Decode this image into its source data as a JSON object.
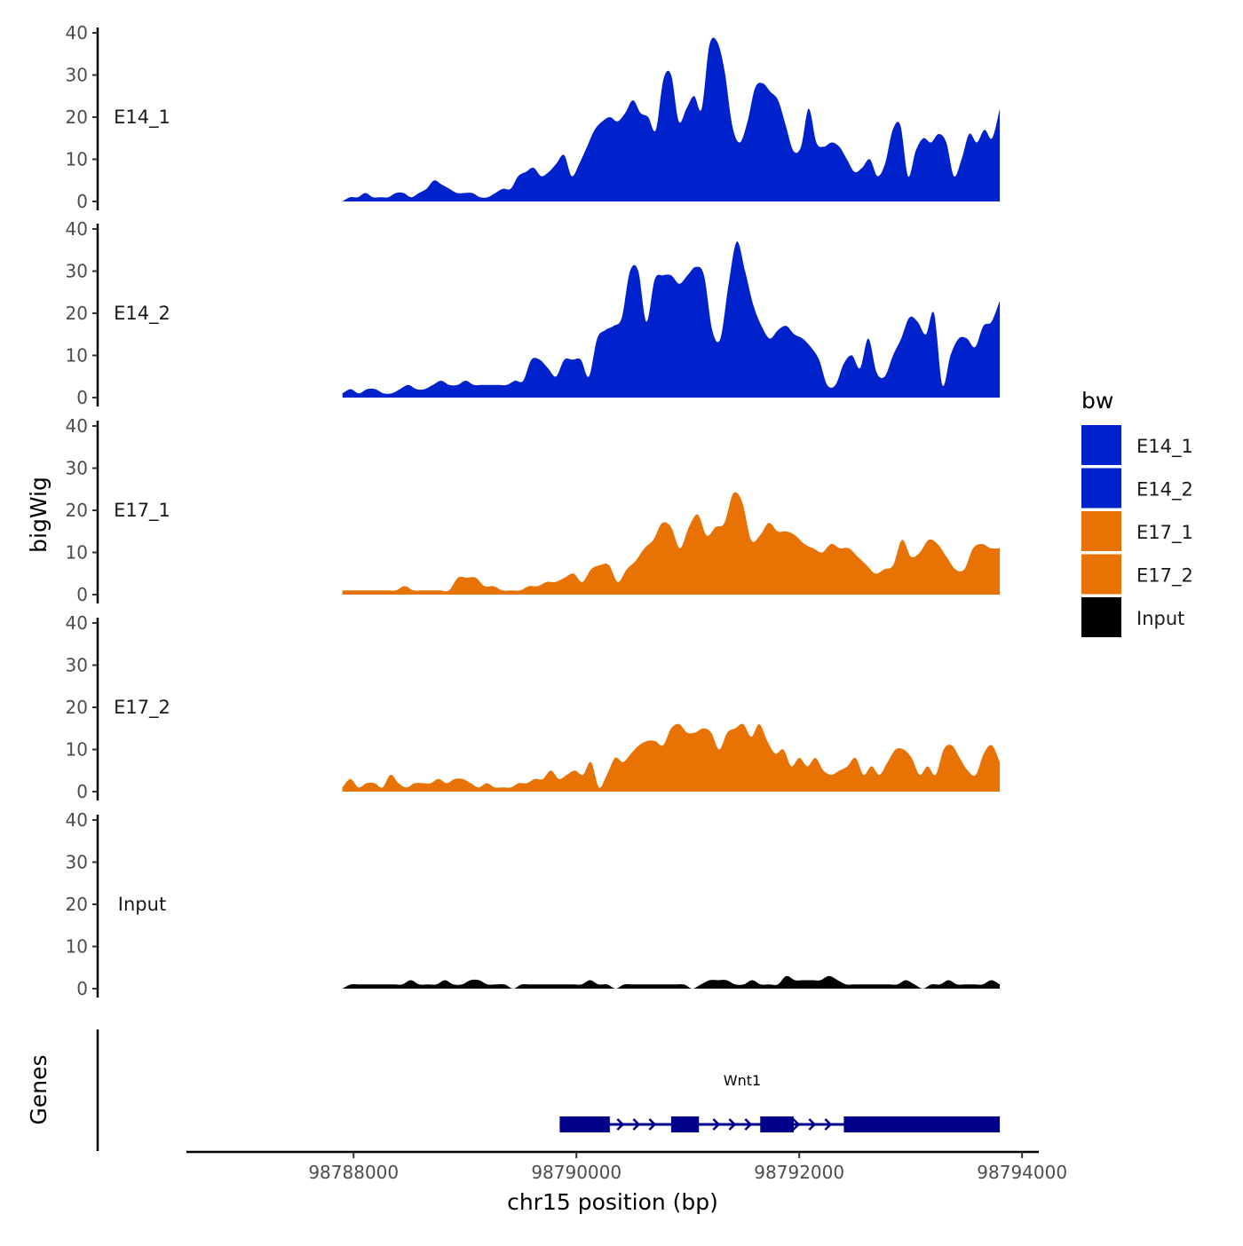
{
  "chart_data": {
    "type": "area",
    "ylabel": "bigWig",
    "xlabel": "chr15 position (bp)",
    "x_ticks": [
      98788000,
      98790000,
      98792000,
      98794000
    ],
    "x_tick_labels": [
      "98788000",
      "98790000",
      "98792000",
      "98794000"
    ],
    "xlim": [
      98786500,
      98794150
    ],
    "data_range": [
      98787900,
      98793800
    ],
    "ylim": [
      0,
      40
    ],
    "y_ticks": [
      0,
      10,
      20,
      30,
      40
    ],
    "y_tick_labels": [
      "0",
      "10",
      "20",
      "30",
      "40"
    ],
    "legend": {
      "title": "bw",
      "position": "right",
      "items": [
        {
          "label": "E14_1",
          "color": "#0022CC"
        },
        {
          "label": "E14_2",
          "color": "#0022CC"
        },
        {
          "label": "E17_1",
          "color": "#E87304"
        },
        {
          "label": "E17_2",
          "color": "#E87304"
        },
        {
          "label": "Input",
          "color": "#000000"
        }
      ]
    },
    "series": [
      {
        "name": "E14_1",
        "color": "#0022CC",
        "values": [
          0,
          1,
          1,
          2,
          1,
          1,
          1,
          2,
          2,
          1,
          2,
          3,
          5,
          4,
          3,
          2,
          2,
          2,
          1,
          1,
          2,
          3,
          3,
          6,
          7,
          8,
          6,
          7,
          9,
          11,
          6,
          9,
          13,
          17,
          19,
          20,
          19,
          21,
          24,
          21,
          20,
          17,
          29,
          30,
          19,
          22,
          25,
          22,
          37,
          38,
          31,
          18,
          14,
          19,
          27,
          28,
          26,
          24,
          18,
          12,
          13,
          22,
          14,
          13,
          14,
          13,
          10,
          7,
          8,
          10,
          6,
          9,
          17,
          18,
          6,
          12,
          15,
          14,
          16,
          14,
          6,
          10,
          16,
          14,
          17,
          15,
          22
        ]
      },
      {
        "name": "E14_2",
        "color": "#0022CC",
        "values": [
          1,
          2,
          1,
          2,
          2,
          1,
          1,
          2,
          3,
          2,
          2,
          3,
          4,
          3,
          3,
          4,
          3,
          3,
          3,
          3,
          3,
          4,
          4,
          9,
          9,
          7,
          5,
          9,
          9,
          9,
          5,
          14,
          16,
          17,
          19,
          30,
          30,
          18,
          28,
          29,
          29,
          27,
          29,
          31,
          29,
          16,
          14,
          27,
          37,
          30,
          22,
          17,
          14,
          16,
          17,
          15,
          14,
          12,
          9,
          3,
          3,
          8,
          10,
          7,
          14,
          6,
          5,
          10,
          14,
          19,
          18,
          15,
          20,
          3,
          10,
          14,
          14,
          12,
          17,
          18,
          23
        ]
      },
      {
        "name": "E17_1",
        "color": "#E87304",
        "values": [
          1,
          1,
          1,
          1,
          1,
          1,
          1,
          2,
          1,
          1,
          1,
          1,
          1,
          4,
          4,
          4,
          2,
          2,
          1,
          1,
          1,
          2,
          2,
          3,
          3,
          4,
          5,
          3,
          6,
          7,
          7,
          3,
          6,
          8,
          11,
          13,
          17,
          16,
          11,
          16,
          19,
          14,
          16,
          17,
          24,
          22,
          13,
          14,
          17,
          15,
          15,
          14,
          12,
          11,
          10,
          12,
          11,
          11,
          9,
          7,
          5,
          6,
          7,
          13,
          9,
          10,
          13,
          12,
          9,
          6,
          6,
          11,
          12,
          11,
          11
        ]
      },
      {
        "name": "E17_2",
        "color": "#E87304",
        "values": [
          1,
          3,
          1,
          2,
          2,
          1,
          4,
          2,
          1,
          2,
          2,
          2,
          3,
          2,
          3,
          3,
          2,
          1,
          2,
          1,
          1,
          1,
          2,
          2,
          3,
          3,
          5,
          3,
          4,
          5,
          4,
          7,
          1,
          4,
          8,
          7,
          9,
          11,
          12,
          12,
          11,
          15,
          16,
          14,
          14,
          15,
          14,
          10,
          14,
          15,
          16,
          13,
          16,
          12,
          9,
          10,
          6,
          8,
          6,
          8,
          5,
          4,
          5,
          6,
          8,
          4,
          6,
          4,
          7,
          10,
          10,
          8,
          4,
          6,
          4,
          10,
          11,
          8,
          5,
          4,
          9,
          11,
          7
        ]
      },
      {
        "name": "Input",
        "color": "#000000",
        "values": [
          0,
          1,
          1,
          1,
          1,
          1,
          1,
          1,
          2,
          1,
          1,
          1,
          2,
          1,
          1,
          2,
          2,
          1,
          1,
          1,
          0,
          1,
          1,
          1,
          1,
          1,
          1,
          1,
          1,
          2,
          1,
          1,
          0,
          1,
          1,
          1,
          1,
          1,
          1,
          1,
          1,
          0,
          1,
          2,
          2,
          2,
          1,
          1,
          2,
          1,
          1,
          1,
          3,
          2,
          2,
          2,
          2,
          3,
          2,
          1,
          1,
          1,
          1,
          1,
          1,
          1,
          2,
          1,
          0,
          1,
          1,
          2,
          1,
          1,
          1,
          1,
          2,
          1
        ]
      }
    ],
    "gene_track": {
      "label": "Genes",
      "gene": "Wnt1",
      "color": "#00008B",
      "start": 98789850,
      "end": 98793800,
      "exons": [
        [
          98789850,
          98790300
        ],
        [
          98790850,
          98791100
        ],
        [
          98791650,
          98791950
        ],
        [
          98792400,
          98793800
        ]
      ]
    }
  }
}
